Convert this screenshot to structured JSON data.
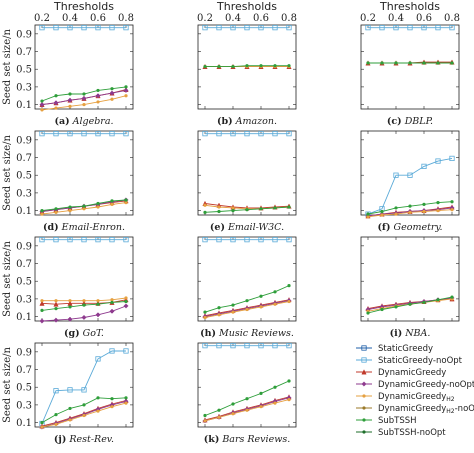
{
  "figure": {
    "top_axis_label": "Thresholds",
    "y_axis_label": "Seed set size/n",
    "x_ticks": [
      "0.2",
      "0.4",
      "0.6",
      "0.8"
    ],
    "y_ticks": [
      "0.1",
      "0.3",
      "0.5",
      "0.7",
      "0.9"
    ]
  },
  "legend": [
    {
      "name": "StaticGreedy",
      "color": "#1f5fa8",
      "marker": "square"
    },
    {
      "name": "StaticGreedy-noOpt",
      "color": "#5aaad8",
      "marker": "square"
    },
    {
      "name": "DynamicGreedy",
      "color": "#c0392b",
      "marker": "triangle"
    },
    {
      "name": "DynamicGreedy-noOpt",
      "color": "#8e3a8e",
      "marker": "diamond"
    },
    {
      "name": "DynamicGreedy_H2",
      "color": "#e6a040",
      "marker": "circle"
    },
    {
      "name": "DynamicGreedy_H2-noOpt",
      "color": "#9b7a2a",
      "marker": "circle"
    },
    {
      "name": "SubTSSH",
      "color": "#2e9e3a",
      "marker": "circle"
    },
    {
      "name": "SubTSSH-noOpt",
      "color": "#1e6e2a",
      "marker": "circle"
    }
  ],
  "chart_data": [
    {
      "type": "line",
      "caption_letter": "(a)",
      "caption_title": "Algebra.",
      "x": [
        0.2,
        0.3,
        0.4,
        0.5,
        0.6,
        0.7,
        0.8
      ],
      "xlim": [
        0.15,
        0.85
      ],
      "ylim": [
        0.05,
        1.0
      ],
      "series": [
        {
          "name": "StaticGreedy-noOpt",
          "values": [
            0.97,
            0.97,
            0.97,
            0.97,
            0.97,
            0.97,
            0.97
          ]
        },
        {
          "name": "DynamicGreedy",
          "values": [
            0.1,
            0.12,
            0.15,
            0.17,
            0.2,
            0.23,
            0.27
          ]
        },
        {
          "name": "DynamicGreedy-noOpt",
          "values": [
            0.1,
            0.12,
            0.15,
            0.17,
            0.2,
            0.23,
            0.26
          ]
        },
        {
          "name": "DynamicGreedy_H2",
          "values": [
            0.04,
            0.06,
            0.08,
            0.1,
            0.13,
            0.16,
            0.2
          ]
        },
        {
          "name": "SubTSSH",
          "values": [
            0.14,
            0.2,
            0.22,
            0.22,
            0.26,
            0.28,
            0.3
          ]
        }
      ]
    },
    {
      "type": "line",
      "caption_letter": "(b)",
      "caption_title": "Amazon.",
      "x": [
        0.2,
        0.3,
        0.4,
        0.5,
        0.6,
        0.7,
        0.8
      ],
      "xlim": [
        0.15,
        0.85
      ],
      "ylim": [
        0.05,
        1.0
      ],
      "series": [
        {
          "name": "StaticGreedy-noOpt",
          "values": [
            0.97,
            0.97,
            0.97,
            0.97,
            0.97,
            0.97,
            0.97
          ]
        },
        {
          "name": "DynamicGreedy",
          "values": [
            0.53,
            0.53,
            0.53,
            0.53,
            0.53,
            0.53,
            0.53
          ]
        },
        {
          "name": "DynamicGreedy_H2",
          "values": [
            0.53,
            0.53,
            0.53,
            0.53,
            0.53,
            0.53,
            0.53
          ]
        },
        {
          "name": "SubTSSH",
          "values": [
            0.53,
            0.53,
            0.53,
            0.54,
            0.54,
            0.54,
            0.54
          ]
        }
      ]
    },
    {
      "type": "line",
      "caption_letter": "(c)",
      "caption_title": "DBLP.",
      "x": [
        0.2,
        0.3,
        0.4,
        0.5,
        0.6,
        0.7,
        0.8
      ],
      "xlim": [
        0.15,
        0.85
      ],
      "ylim": [
        0.05,
        1.0
      ],
      "series": [
        {
          "name": "StaticGreedy-noOpt",
          "values": [
            0.97,
            0.97,
            0.97,
            0.97,
            0.97,
            0.97,
            0.97
          ]
        },
        {
          "name": "DynamicGreedy",
          "values": [
            0.57,
            0.57,
            0.57,
            0.57,
            0.58,
            0.58,
            0.58
          ]
        },
        {
          "name": "DynamicGreedy_H2",
          "values": [
            0.57,
            0.57,
            0.57,
            0.57,
            0.57,
            0.57,
            0.57
          ]
        },
        {
          "name": "SubTSSH",
          "values": [
            0.57,
            0.57,
            0.57,
            0.57,
            0.57,
            0.57,
            0.57
          ]
        }
      ]
    },
    {
      "type": "line",
      "caption_letter": "(d)",
      "caption_title": "Email-Enron.",
      "x": [
        0.2,
        0.3,
        0.4,
        0.5,
        0.6,
        0.7,
        0.8
      ],
      "xlim": [
        0.15,
        0.85
      ],
      "ylim": [
        0.05,
        1.0
      ],
      "series": [
        {
          "name": "StaticGreedy-noOpt",
          "values": [
            0.97,
            0.97,
            0.97,
            0.97,
            0.97,
            0.97,
            0.97
          ]
        },
        {
          "name": "DynamicGreedy",
          "values": [
            0.09,
            0.11,
            0.13,
            0.15,
            0.17,
            0.19,
            0.21
          ]
        },
        {
          "name": "DynamicGreedy-noOpt",
          "values": [
            0.09,
            0.11,
            0.13,
            0.15,
            0.17,
            0.2,
            0.22
          ]
        },
        {
          "name": "DynamicGreedy_H2",
          "values": [
            0.06,
            0.08,
            0.1,
            0.12,
            0.14,
            0.17,
            0.19
          ]
        },
        {
          "name": "SubTSSH",
          "values": [
            0.1,
            0.12,
            0.14,
            0.15,
            0.18,
            0.21,
            0.22
          ]
        }
      ]
    },
    {
      "type": "line",
      "caption_letter": "(e)",
      "caption_title": "Email-W3C.",
      "x": [
        0.2,
        0.3,
        0.4,
        0.5,
        0.6,
        0.7,
        0.8
      ],
      "xlim": [
        0.15,
        0.85
      ],
      "ylim": [
        0.05,
        1.0
      ],
      "series": [
        {
          "name": "StaticGreedy-noOpt",
          "values": [
            0.97,
            0.97,
            0.97,
            0.97,
            0.97,
            0.97,
            0.97
          ]
        },
        {
          "name": "DynamicGreedy",
          "values": [
            0.18,
            0.16,
            0.14,
            0.13,
            0.13,
            0.14,
            0.15
          ]
        },
        {
          "name": "DynamicGreedy_H2",
          "values": [
            0.16,
            0.14,
            0.13,
            0.12,
            0.12,
            0.13,
            0.14
          ]
        },
        {
          "name": "SubTSSH",
          "values": [
            0.08,
            0.09,
            0.1,
            0.11,
            0.12,
            0.13,
            0.14
          ]
        }
      ]
    },
    {
      "type": "line",
      "caption_letter": "(f)",
      "caption_title": "Geometry.",
      "x": [
        0.2,
        0.3,
        0.4,
        0.5,
        0.6,
        0.7,
        0.8
      ],
      "xlim": [
        0.15,
        0.85
      ],
      "ylim": [
        0.05,
        1.0
      ],
      "series": [
        {
          "name": "StaticGreedy-noOpt",
          "values": [
            0.06,
            0.12,
            0.5,
            0.5,
            0.6,
            0.66,
            0.69
          ]
        },
        {
          "name": "DynamicGreedy",
          "values": [
            0.04,
            0.06,
            0.08,
            0.09,
            0.1,
            0.12,
            0.14
          ]
        },
        {
          "name": "DynamicGreedy-noOpt",
          "values": [
            0.04,
            0.06,
            0.07,
            0.09,
            0.1,
            0.11,
            0.13
          ]
        },
        {
          "name": "DynamicGreedy_H2",
          "values": [
            0.03,
            0.05,
            0.06,
            0.08,
            0.09,
            0.1,
            0.11
          ]
        },
        {
          "name": "SubTSSH",
          "values": [
            0.06,
            0.09,
            0.13,
            0.15,
            0.17,
            0.19,
            0.2
          ]
        }
      ]
    },
    {
      "type": "line",
      "caption_letter": "(g)",
      "caption_title": "GoT.",
      "x": [
        0.2,
        0.3,
        0.4,
        0.5,
        0.6,
        0.7,
        0.8
      ],
      "xlim": [
        0.15,
        0.85
      ],
      "ylim": [
        0.05,
        1.0
      ],
      "series": [
        {
          "name": "StaticGreedy-noOpt",
          "values": [
            0.97,
            0.97,
            0.97,
            0.97,
            0.97,
            0.97,
            0.97
          ]
        },
        {
          "name": "DynamicGreedy",
          "values": [
            0.25,
            0.24,
            0.25,
            0.25,
            0.25,
            0.26,
            0.29
          ]
        },
        {
          "name": "DynamicGreedy-noOpt",
          "values": [
            0.05,
            0.06,
            0.07,
            0.09,
            0.12,
            0.16,
            0.22
          ]
        },
        {
          "name": "DynamicGreedy_H2",
          "values": [
            0.28,
            0.28,
            0.28,
            0.28,
            0.28,
            0.29,
            0.31
          ]
        },
        {
          "name": "SubTSSH",
          "values": [
            0.17,
            0.19,
            0.21,
            0.23,
            0.24,
            0.26,
            0.27
          ]
        }
      ]
    },
    {
      "type": "line",
      "caption_letter": "(h)",
      "caption_title": "Music Reviews.",
      "x": [
        0.2,
        0.3,
        0.4,
        0.5,
        0.6,
        0.7,
        0.8
      ],
      "xlim": [
        0.15,
        0.85
      ],
      "ylim": [
        0.05,
        1.0
      ],
      "series": [
        {
          "name": "StaticGreedy-noOpt",
          "values": [
            0.97,
            0.97,
            0.97,
            0.97,
            0.97,
            0.97,
            0.97
          ]
        },
        {
          "name": "DynamicGreedy",
          "values": [
            0.11,
            0.14,
            0.17,
            0.2,
            0.23,
            0.26,
            0.29
          ]
        },
        {
          "name": "DynamicGreedy-noOpt",
          "values": [
            0.1,
            0.13,
            0.16,
            0.19,
            0.22,
            0.25,
            0.28
          ]
        },
        {
          "name": "DynamicGreedy_H2",
          "values": [
            0.09,
            0.12,
            0.15,
            0.18,
            0.21,
            0.24,
            0.27
          ]
        },
        {
          "name": "SubTSSH",
          "values": [
            0.15,
            0.2,
            0.23,
            0.28,
            0.33,
            0.38,
            0.45
          ]
        }
      ]
    },
    {
      "type": "line",
      "caption_letter": "(i)",
      "caption_title": "NBA.",
      "x": [
        0.2,
        0.3,
        0.4,
        0.5,
        0.6,
        0.7,
        0.8
      ],
      "xlim": [
        0.15,
        0.85
      ],
      "ylim": [
        0.05,
        1.0
      ],
      "series": [
        {
          "name": "DynamicGreedy",
          "values": [
            0.19,
            0.22,
            0.24,
            0.26,
            0.27,
            0.29,
            0.3
          ]
        },
        {
          "name": "DynamicGreedy-noOpt",
          "values": [
            0.18,
            0.21,
            0.23,
            0.25,
            0.27,
            0.29,
            0.31
          ]
        },
        {
          "name": "DynamicGreedy_H2",
          "values": [
            0.16,
            0.19,
            0.22,
            0.24,
            0.26,
            0.28,
            0.3
          ]
        },
        {
          "name": "SubTSSH",
          "values": [
            0.14,
            0.18,
            0.21,
            0.24,
            0.26,
            0.29,
            0.32
          ]
        }
      ]
    },
    {
      "type": "line",
      "caption_letter": "(j)",
      "caption_title": "Rest-Rev.",
      "x": [
        0.2,
        0.3,
        0.4,
        0.5,
        0.6,
        0.7,
        0.8
      ],
      "xlim": [
        0.15,
        0.85
      ],
      "ylim": [
        0.05,
        1.0
      ],
      "series": [
        {
          "name": "StaticGreedy-noOpt",
          "values": [
            0.09,
            0.46,
            0.47,
            0.47,
            0.82,
            0.91,
            0.91
          ]
        },
        {
          "name": "DynamicGreedy",
          "values": [
            0.06,
            0.1,
            0.15,
            0.2,
            0.26,
            0.31,
            0.35
          ]
        },
        {
          "name": "DynamicGreedy-noOpt",
          "values": [
            0.05,
            0.09,
            0.14,
            0.19,
            0.25,
            0.3,
            0.34
          ]
        },
        {
          "name": "DynamicGreedy_H2",
          "values": [
            0.05,
            0.08,
            0.13,
            0.18,
            0.23,
            0.28,
            0.32
          ]
        },
        {
          "name": "SubTSSH",
          "values": [
            0.1,
            0.19,
            0.26,
            0.3,
            0.38,
            0.37,
            0.38
          ]
        }
      ]
    },
    {
      "type": "line",
      "caption_letter": "(k)",
      "caption_title": "Bars Reviews.",
      "x": [
        0.2,
        0.3,
        0.4,
        0.5,
        0.6,
        0.7,
        0.8
      ],
      "xlim": [
        0.15,
        0.85
      ],
      "ylim": [
        0.05,
        1.0
      ],
      "series": [
        {
          "name": "StaticGreedy-noOpt",
          "values": [
            0.97,
            0.97,
            0.97,
            0.97,
            0.97,
            0.97,
            0.97
          ]
        },
        {
          "name": "DynamicGreedy",
          "values": [
            0.13,
            0.17,
            0.22,
            0.26,
            0.3,
            0.35,
            0.39
          ]
        },
        {
          "name": "DynamicGreedy-noOpt",
          "values": [
            0.12,
            0.16,
            0.21,
            0.25,
            0.29,
            0.34,
            0.38
          ]
        },
        {
          "name": "DynamicGreedy_H2",
          "values": [
            0.12,
            0.16,
            0.2,
            0.24,
            0.28,
            0.32,
            0.36
          ]
        },
        {
          "name": "SubTSSH",
          "values": [
            0.18,
            0.24,
            0.31,
            0.37,
            0.43,
            0.5,
            0.57
          ]
        }
      ]
    }
  ]
}
